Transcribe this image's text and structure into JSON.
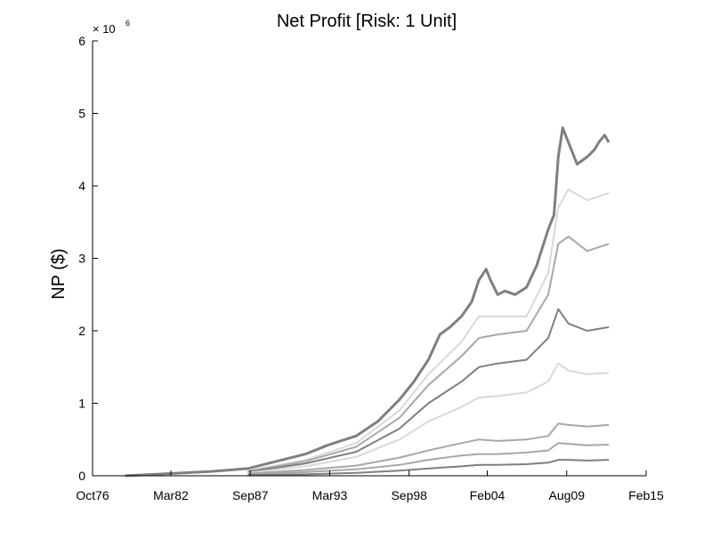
{
  "chart_data": {
    "type": "line",
    "title": "Net Profit [Risk: 1 Unit]",
    "xlabel": "",
    "ylabel": "NP ($)",
    "y_exponent_label": "× 10",
    "y_exponent_power": "6",
    "x_ticks": [
      "Oct76",
      "Mar82",
      "Sep87",
      "Mar93",
      "Sep98",
      "Feb04",
      "Aug09",
      "Feb15"
    ],
    "x_tick_values": [
      1976.75,
      1982.17,
      1987.67,
      1993.17,
      1998.67,
      2004.08,
      2009.58,
      2015.08
    ],
    "xlim": [
      1976.75,
      2015.08
    ],
    "y_ticks": [
      "0",
      "1",
      "2",
      "3",
      "4",
      "5",
      "6"
    ],
    "ylim": [
      0,
      6
    ],
    "grid": false,
    "legend": "none",
    "colors": {
      "series_dark": "#7f7f7f",
      "series_mid": "#a8a8a8",
      "series_light": "#d9d9d9",
      "axis": "#000000"
    },
    "series": [
      {
        "color": "#7f7f7f",
        "x": [
          1979.0,
          1982.0,
          1985.0,
          1987.5,
          1989.5,
          1991.5,
          1993.0,
          1995.0,
          1996.5,
          1998.0,
          1999.0,
          2000.0,
          2000.8,
          2001.5,
          2002.3,
          2003.0,
          2003.5,
          2004.0,
          2004.3,
          2004.8,
          2005.3,
          2006.0,
          2006.8,
          2007.5,
          2008.3,
          2008.7,
          2009.0,
          2009.3,
          2009.7,
          2010.3,
          2011.0,
          2011.5,
          2011.8,
          2012.2,
          2012.5
        ],
        "values": [
          0.0,
          0.03,
          0.06,
          0.1,
          0.2,
          0.3,
          0.42,
          0.55,
          0.75,
          1.05,
          1.3,
          1.6,
          1.95,
          2.05,
          2.2,
          2.4,
          2.7,
          2.85,
          2.7,
          2.5,
          2.55,
          2.5,
          2.6,
          2.9,
          3.4,
          3.6,
          4.4,
          4.8,
          4.6,
          4.3,
          4.4,
          4.5,
          4.6,
          4.7,
          4.6
        ]
      },
      {
        "color": "#d9d9d9",
        "x": [
          1987.5,
          1991.5,
          1995.0,
          1998.0,
          2000.0,
          2002.3,
          2003.5,
          2004.8,
          2006.8,
          2008.3,
          2009.0,
          2009.7,
          2011.0,
          2012.5
        ],
        "values": [
          0.07,
          0.22,
          0.45,
          0.9,
          1.4,
          1.85,
          2.2,
          2.2,
          2.2,
          2.8,
          3.7,
          3.95,
          3.8,
          3.9
        ]
      },
      {
        "color": "#a8a8a8",
        "x": [
          1987.5,
          1991.5,
          1995.0,
          1998.0,
          2000.0,
          2002.3,
          2003.5,
          2004.8,
          2006.8,
          2008.3,
          2009.0,
          2009.7,
          2011.0,
          2012.5
        ],
        "values": [
          0.06,
          0.2,
          0.4,
          0.8,
          1.25,
          1.65,
          1.9,
          1.95,
          2.0,
          2.5,
          3.2,
          3.3,
          3.1,
          3.2
        ]
      },
      {
        "color": "#7f7f7f",
        "x": [
          1987.5,
          1991.5,
          1995.0,
          1998.0,
          2000.0,
          2002.3,
          2003.5,
          2004.8,
          2006.8,
          2008.3,
          2009.0,
          2009.7,
          2011.0,
          2012.5
        ],
        "values": [
          0.05,
          0.17,
          0.33,
          0.65,
          1.0,
          1.3,
          1.5,
          1.55,
          1.6,
          1.9,
          2.3,
          2.1,
          2.0,
          2.05
        ]
      },
      {
        "color": "#d9d9d9",
        "x": [
          1987.5,
          1991.5,
          1995.0,
          1998.0,
          2000.0,
          2002.3,
          2003.5,
          2004.8,
          2006.8,
          2008.3,
          2009.0,
          2009.7,
          2011.0,
          2012.5
        ],
        "values": [
          0.04,
          0.13,
          0.26,
          0.5,
          0.75,
          0.95,
          1.08,
          1.1,
          1.15,
          1.3,
          1.55,
          1.45,
          1.4,
          1.42
        ]
      },
      {
        "color": "#a8a8a8",
        "x": [
          1987.5,
          1991.5,
          1995.0,
          1998.0,
          2000.0,
          2002.3,
          2003.5,
          2004.8,
          2006.8,
          2008.3,
          2009.0,
          2009.7,
          2011.0,
          2012.5
        ],
        "values": [
          0.03,
          0.08,
          0.14,
          0.25,
          0.35,
          0.45,
          0.5,
          0.48,
          0.5,
          0.55,
          0.72,
          0.7,
          0.68,
          0.7
        ]
      },
      {
        "color": "#a8a8a8",
        "x": [
          1987.5,
          1991.5,
          1995.0,
          1998.0,
          2000.0,
          2002.3,
          2003.5,
          2004.8,
          2006.8,
          2008.3,
          2009.0,
          2009.7,
          2011.0,
          2012.5
        ],
        "values": [
          0.02,
          0.05,
          0.09,
          0.15,
          0.22,
          0.28,
          0.3,
          0.3,
          0.32,
          0.35,
          0.45,
          0.44,
          0.42,
          0.43
        ]
      },
      {
        "color": "#7f7f7f",
        "x": [
          1987.5,
          1991.5,
          1995.0,
          1998.0,
          2000.0,
          2002.3,
          2003.5,
          2004.8,
          2006.8,
          2008.3,
          2009.0,
          2009.7,
          2011.0,
          2012.5
        ],
        "values": [
          0.01,
          0.02,
          0.04,
          0.07,
          0.1,
          0.13,
          0.15,
          0.15,
          0.16,
          0.18,
          0.22,
          0.22,
          0.21,
          0.22
        ]
      }
    ]
  }
}
